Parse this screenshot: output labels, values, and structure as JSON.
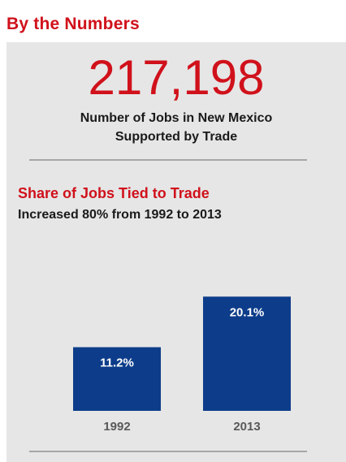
{
  "header": {
    "title": "By the Numbers"
  },
  "headline": {
    "value": "217,198",
    "caption_line1": "Number of Jobs in New Mexico",
    "caption_line2": "Supported by Trade"
  },
  "chart_data": {
    "type": "bar",
    "title": "Share of Jobs Tied to Trade",
    "subtitle": "Increased 80% from 1992 to 2013",
    "categories": [
      "1992",
      "2013"
    ],
    "values": [
      11.2,
      20.1
    ],
    "data_labels": [
      "11.2%",
      "20.1%"
    ],
    "unit": "%",
    "ylim": [
      0,
      25
    ],
    "grid": false,
    "bar_color": "#0d3d8a"
  },
  "colors": {
    "accent_red": "#d0111b",
    "bar_blue": "#0d3d8a",
    "panel_gray": "#e6e6e6"
  }
}
